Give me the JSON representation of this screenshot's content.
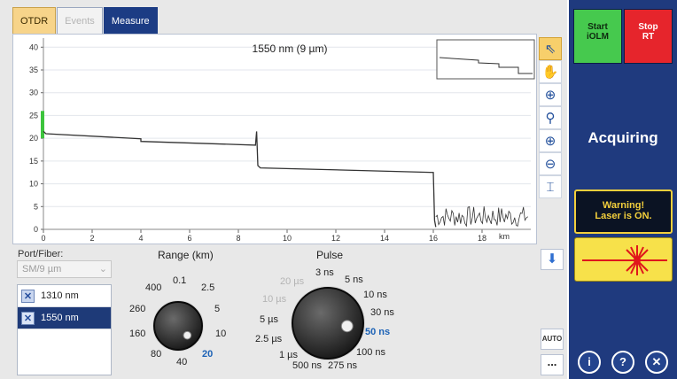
{
  "tabs": [
    {
      "label": "OTDR",
      "state": "active"
    },
    {
      "label": "Events",
      "state": "disabled"
    },
    {
      "label": "Measure",
      "state": "highlight"
    }
  ],
  "trace": {
    "title": "1550 nm (9 µm)",
    "x_unit": "km",
    "x_ticks": [
      "0",
      "2",
      "4",
      "6",
      "8",
      "10",
      "12",
      "14",
      "16",
      "18"
    ],
    "y_ticks": [
      "0",
      "5",
      "10",
      "15",
      "20",
      "25",
      "30",
      "35",
      "40"
    ],
    "colors": {
      "trace": "#333333",
      "launch_marker": "#3cc43c",
      "grid": "#e3e6ec"
    }
  },
  "chart_data": {
    "type": "line",
    "title": "1550 nm (9 µm)",
    "xlabel": "km",
    "ylabel": "",
    "xlim": [
      0,
      20
    ],
    "ylim": [
      0,
      42
    ],
    "grid": true,
    "series": [
      {
        "x": [
          0,
          0.1,
          4.0,
          4.0,
          8.7,
          8.75,
          8.8,
          8.9,
          16.0,
          16.05,
          16.1
        ],
        "y": [
          21.5,
          21.0,
          19.9,
          19.3,
          18.5,
          21.5,
          14.0,
          13.5,
          12.5,
          2.0,
          0.5
        ]
      }
    ]
  },
  "tools": [
    {
      "name": "pointer-tool-icon",
      "symbol": "⇖"
    },
    {
      "name": "hand-tool-icon",
      "symbol": "✋"
    },
    {
      "name": "zoom-area-icon",
      "symbol": "⊕"
    },
    {
      "name": "zoom-reset-icon",
      "symbol": "⚲"
    },
    {
      "name": "zoom-in-icon",
      "symbol": "⊕"
    },
    {
      "name": "zoom-out-icon",
      "symbol": "⊖"
    },
    {
      "name": "fit-view-icon",
      "symbol": "⌶"
    }
  ],
  "port": {
    "label": "Port/Fiber:",
    "value": "SM/9 µm",
    "wavelengths": [
      {
        "label": "1310 nm",
        "checked": true,
        "selected": false
      },
      {
        "label": "1550 nm",
        "checked": true,
        "selected": true
      }
    ]
  },
  "range": {
    "title": "Range (km)",
    "options": [
      "0.1",
      "2.5",
      "5",
      "10",
      "20",
      "40",
      "80",
      "160",
      "260",
      "400"
    ],
    "selected": "20"
  },
  "pulse": {
    "title": "Pulse",
    "options": [
      "3 ns",
      "5 ns",
      "10 ns",
      "30 ns",
      "50 ns",
      "100 ns",
      "275 ns",
      "500 ns",
      "1 µs",
      "2.5 µs",
      "5 µs",
      "10 µs",
      "20 µs"
    ],
    "disabled": [
      "10 µs",
      "20 µs"
    ],
    "selected": "50 ns"
  },
  "buttons": {
    "auto": "AUTO",
    "more": "...",
    "down": "⬇"
  },
  "side": {
    "start": "Start\niOLM",
    "start_l1": "Start",
    "start_l2": "iOLM",
    "stop_l1": "Stop",
    "stop_l2": "RT",
    "status": "Acquiring",
    "warning_l1": "Warning!",
    "warning_l2": "Laser is ON.",
    "info": "i",
    "help": "?",
    "close": "✕",
    "colors": {
      "panel": "#1f3a7e",
      "start": "#46c94e",
      "stop": "#e6252c",
      "warning": "#f3cf3c",
      "laser": "#f7e14a"
    }
  }
}
